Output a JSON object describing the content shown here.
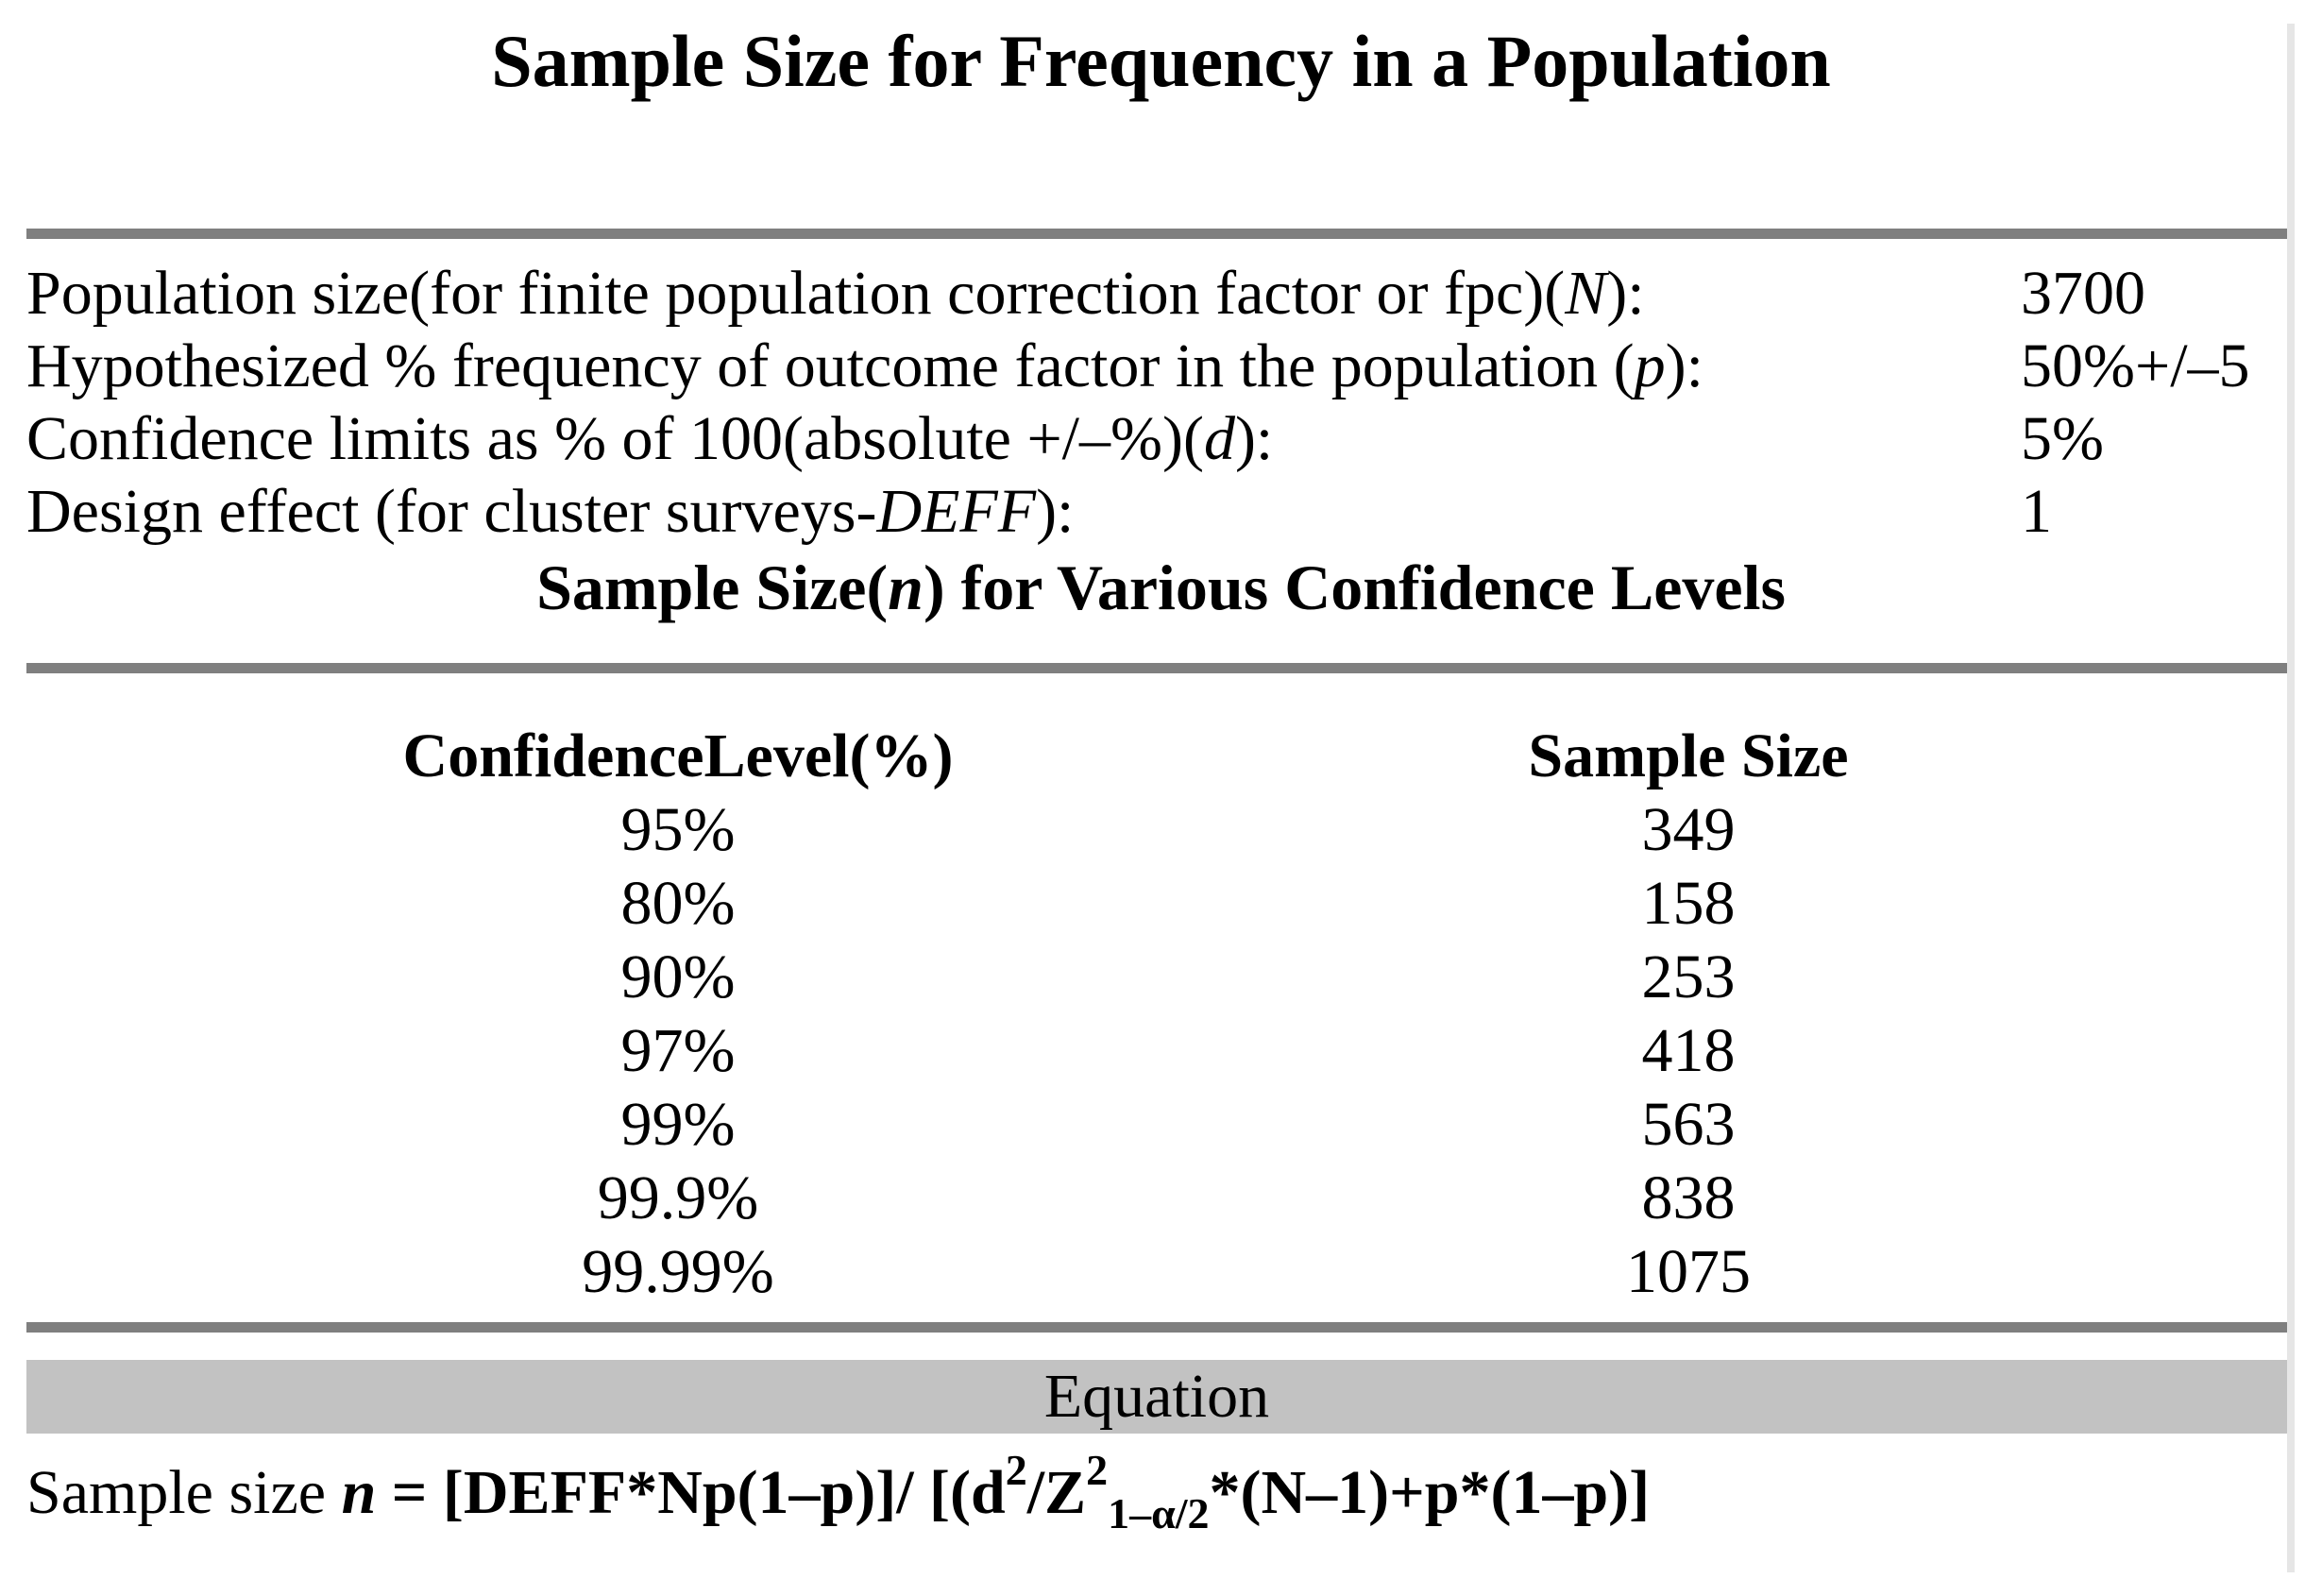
{
  "page_title": "Sample Size for Frequency in a Population",
  "parameters": [
    {
      "pre": "Population size(for finite population correction factor or fpc)(",
      "var": "N",
      "post": "):",
      "value": "3700"
    },
    {
      "pre": "Hypothesized % frequency of outcome factor in the population (",
      "var": "p",
      "post": "):",
      "value": "50%+/–5"
    },
    {
      "pre": "Confidence limits as % of 100(absolute +/–%)(",
      "var": "d",
      "post": "):",
      "value": "5%"
    },
    {
      "pre": "Design effect (for cluster surveys-",
      "var": "DEFF",
      "post": "):",
      "value": "1"
    }
  ],
  "section_heading": {
    "pre": "Sample Size(",
    "var": "n",
    "post": ") for Various Confidence Levels"
  },
  "table": {
    "headers": {
      "level": "ConfidenceLevel(%)",
      "size": "Sample Size"
    },
    "rows": [
      {
        "level": "95%",
        "size": "349"
      },
      {
        "level": "80%",
        "size": "158"
      },
      {
        "level": "90%",
        "size": "253"
      },
      {
        "level": "97%",
        "size": "418"
      },
      {
        "level": "99%",
        "size": "563"
      },
      {
        "level": "99.9%",
        "size": "838"
      },
      {
        "level": "99.99%",
        "size": "1075"
      }
    ]
  },
  "equation_section": {
    "header": "Equation",
    "prefix": "Sample size ",
    "var": "n",
    "equals": " = ",
    "seg1": "[DEFF*Np(1–p)]/ [(d",
    "sup1": "2",
    "seg2": "/Z",
    "sup2": "2",
    "sub1": "1–α/2",
    "seg3": "*(N–1)+p*(1–p)]"
  },
  "colors": {
    "rule_gray": "#7f7f7f",
    "equation_band_gray": "#c2c2c2",
    "right_border_gray": "#e6e6e6"
  }
}
